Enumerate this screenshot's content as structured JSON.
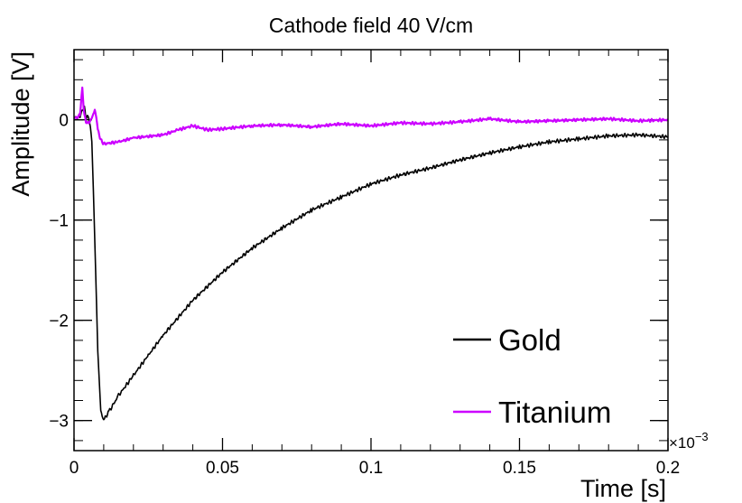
{
  "chart_data": {
    "type": "line",
    "title": "Cathode field 40 V/cm",
    "xlabel": "Time [s]",
    "ylabel": "Amplitude [V]",
    "x_exponent_label": "×10",
    "x_exponent_power": "−3",
    "xlim": [
      0,
      0.2
    ],
    "ylim": [
      -3.3,
      0.7
    ],
    "x_ticks": [
      {
        "value": 0,
        "label": "0"
      },
      {
        "value": 0.05,
        "label": "0.05"
      },
      {
        "value": 0.1,
        "label": "0.1"
      },
      {
        "value": 0.15,
        "label": "0.15"
      },
      {
        "value": 0.2,
        "label": "0.2"
      }
    ],
    "y_ticks": [
      {
        "value": 0,
        "label": "0"
      },
      {
        "value": -1,
        "label": "−1"
      },
      {
        "value": -2,
        "label": "−2"
      },
      {
        "value": -3,
        "label": "−3"
      }
    ],
    "legend": {
      "position": "bottom-right"
    },
    "series": [
      {
        "name": "Gold",
        "color": "#000000",
        "x": [
          0,
          0.002,
          0.0035,
          0.004,
          0.005,
          0.006,
          0.007,
          0.008,
          0.009,
          0.01,
          0.0105,
          0.012,
          0.015,
          0.02,
          0.025,
          0.03,
          0.04,
          0.05,
          0.06,
          0.07,
          0.08,
          0.09,
          0.1,
          0.11,
          0.12,
          0.13,
          0.14,
          0.15,
          0.16,
          0.17,
          0.18,
          0.19,
          0.2
        ],
        "y": [
          0.02,
          0.03,
          0.15,
          0.02,
          0.03,
          -0.2,
          -1.2,
          -2.3,
          -2.9,
          -3.0,
          -2.97,
          -2.9,
          -2.75,
          -2.55,
          -2.35,
          -2.15,
          -1.8,
          -1.52,
          -1.28,
          -1.08,
          -0.9,
          -0.77,
          -0.64,
          -0.55,
          -0.48,
          -0.4,
          -0.33,
          -0.27,
          -0.22,
          -0.19,
          -0.16,
          -0.15,
          -0.17
        ]
      },
      {
        "name": "Titanium",
        "color": "#cc00ff",
        "x": [
          0,
          0.001,
          0.002,
          0.0028,
          0.0033,
          0.004,
          0.005,
          0.006,
          0.007,
          0.0075,
          0.008,
          0.009,
          0.01,
          0.015,
          0.02,
          0.03,
          0.035,
          0.04,
          0.045,
          0.05,
          0.06,
          0.07,
          0.08,
          0.09,
          0.1,
          0.11,
          0.12,
          0.13,
          0.14,
          0.15,
          0.16,
          0.17,
          0.18,
          0.19,
          0.2
        ],
        "y": [
          0.02,
          0.02,
          0.05,
          0.33,
          0.1,
          -0.02,
          -0.03,
          0.02,
          0.1,
          0.02,
          -0.1,
          -0.2,
          -0.24,
          -0.22,
          -0.18,
          -0.15,
          -0.1,
          -0.06,
          -0.1,
          -0.09,
          -0.06,
          -0.05,
          -0.07,
          -0.04,
          -0.06,
          -0.03,
          -0.04,
          -0.02,
          0.01,
          -0.02,
          -0.01,
          0.0,
          0.01,
          -0.01,
          0.0
        ]
      }
    ]
  }
}
